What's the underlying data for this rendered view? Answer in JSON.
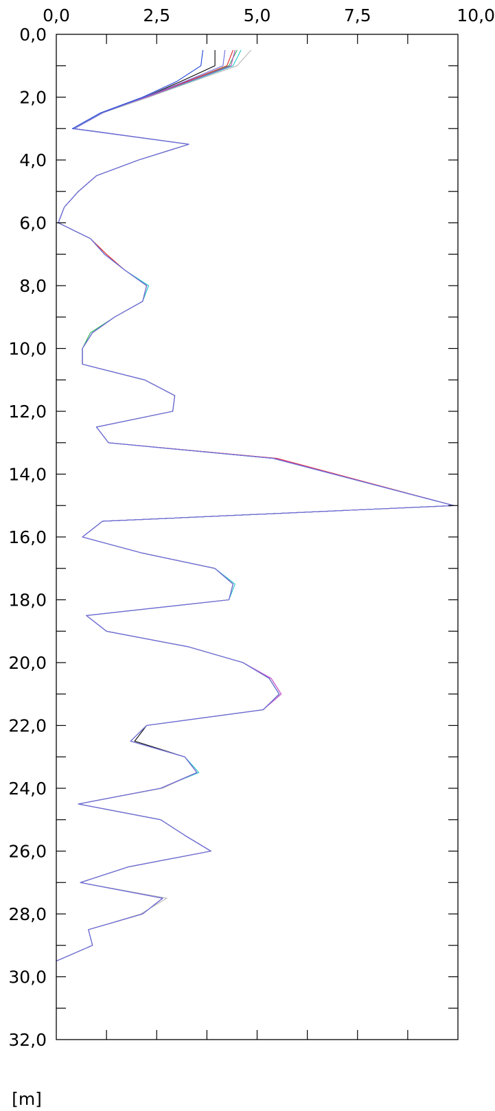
{
  "chart_data": {
    "type": "line",
    "orientation": "depth-profile",
    "title": "",
    "xlabel": "",
    "ylabel": "[m]",
    "xlim": [
      0,
      10
    ],
    "ylim": [
      0,
      32
    ],
    "y_inverted": true,
    "grid": false,
    "x_ticks": [
      {
        "value": 0,
        "label": "0,0"
      },
      {
        "value": 2.5,
        "label": "2,5"
      },
      {
        "value": 5,
        "label": "5,0"
      },
      {
        "value": 7.5,
        "label": "7,5"
      },
      {
        "value": 10,
        "label": "10,0"
      }
    ],
    "x_minor_ticks": [
      1.25,
      3.75,
      6.25,
      8.75
    ],
    "y_ticks": [
      {
        "value": 0,
        "label": "0,0"
      },
      {
        "value": 2,
        "label": "2,0"
      },
      {
        "value": 4,
        "label": "4,0"
      },
      {
        "value": 6,
        "label": "6,0"
      },
      {
        "value": 8,
        "label": "8,0"
      },
      {
        "value": 10,
        "label": "10,0"
      },
      {
        "value": 12,
        "label": "12,0"
      },
      {
        "value": 14,
        "label": "14,0"
      },
      {
        "value": 16,
        "label": "16,0"
      },
      {
        "value": 18,
        "label": "18,0"
      },
      {
        "value": 20,
        "label": "20,0"
      },
      {
        "value": 22,
        "label": "22,0"
      },
      {
        "value": 24,
        "label": "24,0"
      },
      {
        "value": 26,
        "label": "26,0"
      },
      {
        "value": 28,
        "label": "28,0"
      },
      {
        "value": 30,
        "label": "30,0"
      },
      {
        "value": 32,
        "label": "32,0"
      }
    ],
    "y_minor_ticks": [
      1,
      3,
      5,
      7,
      9,
      11,
      13,
      15,
      17,
      19,
      21,
      23,
      25,
      27,
      29,
      31
    ],
    "depth": [
      0.5,
      1.0,
      1.5,
      2.0,
      2.5,
      3.0,
      3.5,
      4.0,
      4.5,
      5.0,
      5.5,
      6.0,
      6.5,
      7.0,
      7.5,
      8.0,
      8.5,
      9.0,
      9.5,
      10.0,
      10.5,
      11.0,
      11.5,
      12.0,
      12.5,
      13.0,
      13.5,
      15.0,
      15.5,
      16.0,
      16.5,
      17.0,
      17.5,
      18.0,
      18.5,
      19.0,
      19.5,
      20.0,
      20.5,
      21.0,
      21.5,
      22.0,
      22.5,
      23.0,
      23.5,
      24.0,
      24.5,
      25.0,
      25.5,
      26.0,
      26.5,
      27.0,
      27.5,
      28.0,
      28.5,
      29.0,
      29.5
    ],
    "base_values": [
      3.9,
      3.6,
      3.1,
      2.2,
      1.15,
      0.45,
      3.3,
      2.05,
      1.0,
      0.55,
      0.2,
      0.05,
      0.85,
      1.2,
      1.7,
      2.25,
      2.15,
      1.45,
      0.9,
      0.65,
      0.65,
      2.2,
      2.95,
      2.9,
      1.0,
      1.3,
      5.4,
      9.9,
      1.15,
      0.65,
      2.1,
      3.95,
      4.4,
      4.3,
      0.75,
      1.25,
      3.3,
      4.65,
      5.3,
      5.55,
      5.15,
      2.25,
      1.85,
      3.2,
      3.5,
      2.6,
      0.55,
      2.6,
      3.2,
      3.85,
      1.8,
      0.6,
      2.65,
      2.15,
      0.8,
      0.9,
      0.0
    ],
    "series": [
      {
        "color": "#000000",
        "values": [
          3.95,
          3.95,
          3.1,
          2.2,
          1.15,
          0.45,
          3.3,
          2.05,
          1.0,
          0.55,
          0.2,
          0.05,
          0.85,
          1.2,
          1.7,
          2.25,
          2.15,
          1.45,
          0.9,
          0.65,
          0.65,
          2.2,
          2.95,
          2.9,
          1.0,
          1.3,
          5.4,
          9.9,
          1.15,
          0.65,
          2.1,
          3.95,
          4.4,
          4.3,
          0.75,
          1.25,
          3.3,
          4.65,
          5.3,
          5.55,
          5.15,
          2.25,
          1.95,
          3.2,
          3.5,
          2.6,
          0.55,
          2.6,
          3.2,
          3.85,
          1.8,
          0.6,
          2.65,
          2.15,
          0.8,
          0.9,
          0.0
        ]
      },
      {
        "color": "#1a3fd6",
        "values": [
          3.65,
          3.6,
          3.0,
          2.15,
          1.1,
          0.4,
          3.3,
          2.05,
          1.0,
          0.55,
          0.2,
          0.05,
          0.85,
          1.2,
          1.7,
          2.25,
          2.15,
          1.45,
          0.9,
          0.65,
          0.65,
          2.2,
          2.95,
          2.9,
          1.0,
          1.3,
          5.4,
          9.9,
          1.15,
          0.65,
          2.1,
          3.95,
          4.4,
          4.3,
          0.75,
          1.25,
          3.3,
          4.65,
          5.3,
          5.55,
          5.15,
          2.25,
          1.85,
          3.2,
          3.5,
          2.6,
          0.55,
          2.6,
          3.2,
          3.85,
          1.8,
          0.6,
          2.65,
          2.15,
          0.8,
          0.9,
          0.0
        ]
      },
      {
        "color": "#e02020",
        "values": [
          4.4,
          4.25,
          3.25,
          2.25,
          1.15,
          0.45,
          3.3,
          2.05,
          1.0,
          0.55,
          0.2,
          0.05,
          0.85,
          1.25,
          1.7,
          2.25,
          2.15,
          1.45,
          0.9,
          0.65,
          0.65,
          2.2,
          2.95,
          2.9,
          1.0,
          1.3,
          5.5,
          9.9,
          1.15,
          0.65,
          2.1,
          3.95,
          4.4,
          4.3,
          0.75,
          1.25,
          3.3,
          4.65,
          5.3,
          5.55,
          5.15,
          2.25,
          1.85,
          3.2,
          3.5,
          2.6,
          0.55,
          2.6,
          3.2,
          3.85,
          1.8,
          0.6,
          2.65,
          2.15,
          0.8,
          0.9,
          0.0
        ]
      },
      {
        "color": "#20b050",
        "values": [
          4.5,
          4.3,
          3.3,
          2.25,
          1.15,
          0.45,
          3.3,
          2.05,
          1.0,
          0.55,
          0.2,
          0.05,
          0.85,
          1.2,
          1.7,
          2.25,
          2.15,
          1.45,
          0.85,
          0.65,
          0.65,
          2.2,
          2.95,
          2.9,
          1.0,
          1.3,
          5.4,
          9.9,
          1.15,
          0.65,
          2.1,
          3.95,
          4.4,
          4.3,
          0.75,
          1.25,
          3.3,
          4.65,
          5.3,
          5.55,
          5.15,
          2.25,
          1.85,
          3.2,
          3.5,
          2.6,
          0.55,
          2.6,
          3.2,
          3.85,
          1.8,
          0.6,
          2.65,
          2.15,
          0.8,
          0.9,
          0.0
        ]
      },
      {
        "color": "#20c8c8",
        "values": [
          4.6,
          4.4,
          3.35,
          2.3,
          1.15,
          0.45,
          3.3,
          2.05,
          1.0,
          0.55,
          0.2,
          0.05,
          0.85,
          1.2,
          1.7,
          2.3,
          2.15,
          1.45,
          0.9,
          0.65,
          0.65,
          2.2,
          2.95,
          2.9,
          1.0,
          1.3,
          5.4,
          9.9,
          1.15,
          0.65,
          2.1,
          3.95,
          4.45,
          4.3,
          0.75,
          1.25,
          3.3,
          4.65,
          5.3,
          5.55,
          5.15,
          2.25,
          1.85,
          3.2,
          3.55,
          2.6,
          0.55,
          2.6,
          3.2,
          3.85,
          1.8,
          0.6,
          2.65,
          2.15,
          0.8,
          0.9,
          0.0
        ]
      },
      {
        "color": "#c040c0",
        "values": [
          4.45,
          4.35,
          3.3,
          2.25,
          1.15,
          0.45,
          3.3,
          2.05,
          1.0,
          0.55,
          0.2,
          0.05,
          0.85,
          1.2,
          1.7,
          2.25,
          2.15,
          1.45,
          0.9,
          0.65,
          0.65,
          2.2,
          2.95,
          2.9,
          1.0,
          1.3,
          5.45,
          9.9,
          1.15,
          0.65,
          2.1,
          3.95,
          4.4,
          4.3,
          0.75,
          1.25,
          3.3,
          4.65,
          5.35,
          5.6,
          5.15,
          2.25,
          1.85,
          3.2,
          3.5,
          2.6,
          0.55,
          2.6,
          3.2,
          3.85,
          1.8,
          0.6,
          2.65,
          2.15,
          0.8,
          0.9,
          0.0
        ]
      },
      {
        "color": "#b8b8b8",
        "values": [
          4.85,
          4.5,
          3.4,
          2.3,
          1.15,
          0.45,
          3.3,
          2.05,
          1.0,
          0.55,
          0.2,
          0.05,
          0.85,
          1.2,
          1.7,
          2.25,
          2.15,
          1.45,
          0.9,
          0.65,
          0.65,
          2.2,
          2.95,
          2.9,
          1.0,
          1.3,
          5.4,
          9.9,
          1.15,
          0.65,
          2.1,
          3.95,
          4.4,
          4.3,
          0.75,
          1.25,
          3.3,
          4.65,
          5.3,
          5.55,
          5.15,
          2.25,
          1.85,
          3.2,
          3.5,
          2.65,
          0.55,
          2.6,
          3.2,
          3.85,
          1.8,
          0.6,
          2.75,
          2.1,
          0.8,
          0.9,
          0.0
        ]
      },
      {
        "color": "#6a6ae0",
        "values": [
          4.2,
          4.15,
          3.2,
          2.2,
          1.15,
          0.45,
          3.3,
          2.05,
          1.0,
          0.55,
          0.2,
          0.05,
          0.85,
          1.2,
          1.7,
          2.25,
          2.15,
          1.45,
          0.9,
          0.65,
          0.65,
          2.2,
          2.95,
          2.9,
          1.0,
          1.3,
          5.4,
          9.9,
          1.15,
          0.65,
          2.1,
          3.95,
          4.4,
          4.3,
          0.75,
          1.25,
          3.3,
          4.65,
          5.3,
          5.55,
          5.15,
          2.25,
          1.85,
          3.2,
          3.5,
          2.6,
          0.55,
          2.6,
          3.2,
          3.85,
          1.8,
          0.6,
          2.65,
          2.15,
          0.8,
          0.9,
          0.0
        ]
      }
    ]
  }
}
